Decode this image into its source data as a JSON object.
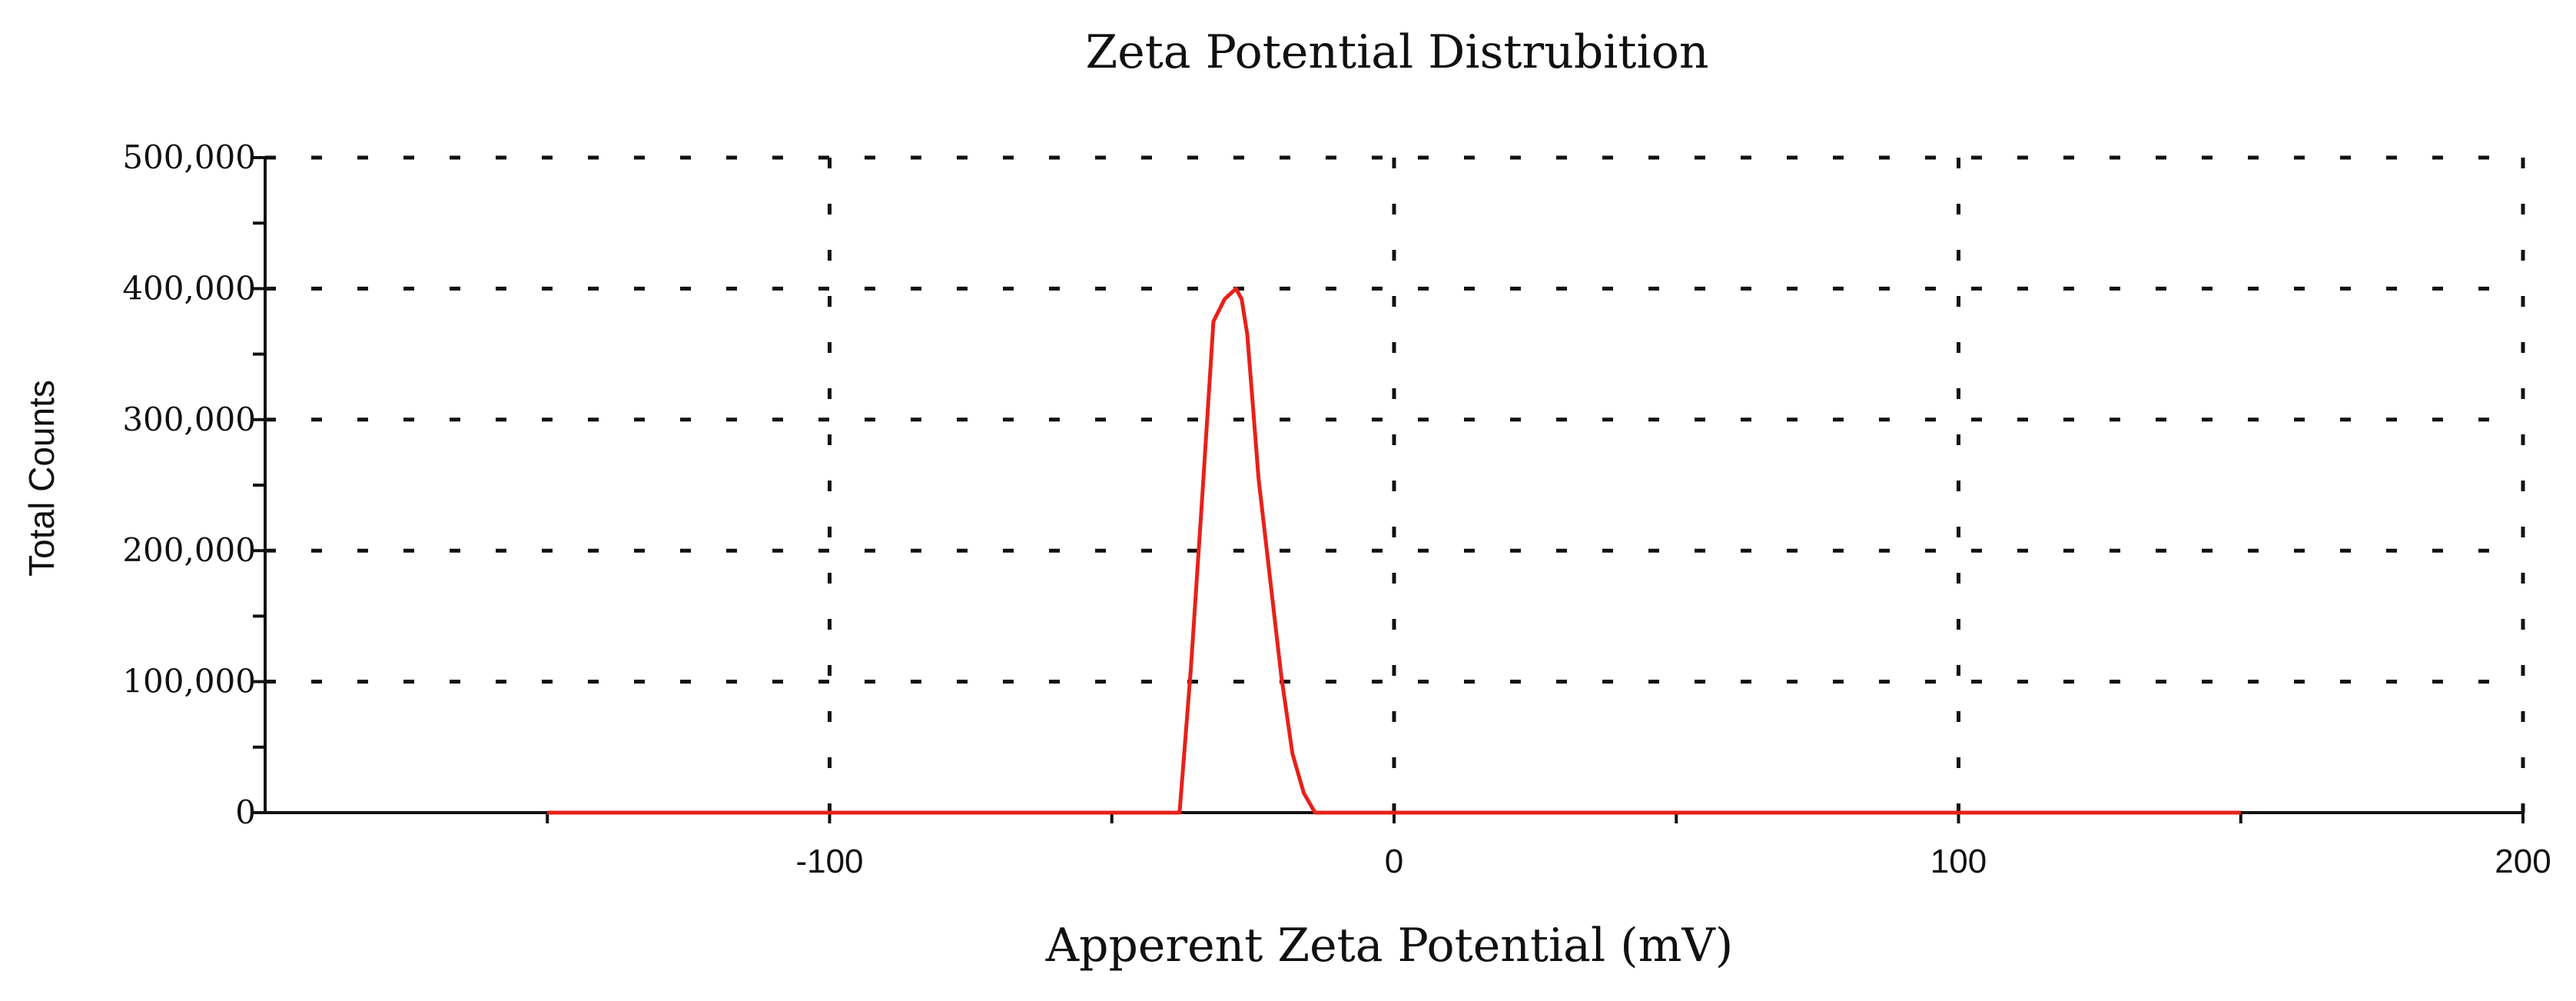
{
  "chart_data": {
    "type": "line",
    "title": "Zeta Potential Distrubition",
    "xlabel": "Apperent Zeta Potential (mV)",
    "ylabel": "Total Counts",
    "xlim": [
      -200,
      200
    ],
    "ylim": [
      0,
      500000
    ],
    "x_ticks": [
      -100,
      0,
      100,
      200
    ],
    "x_tick_labels": [
      "-100",
      "0",
      "100",
      "200"
    ],
    "y_ticks": [
      0,
      100000,
      200000,
      300000,
      400000,
      500000
    ],
    "y_tick_labels": [
      "0",
      "100,000",
      "200,000",
      "300,000",
      "400,000",
      "500,000"
    ],
    "grid": true,
    "line_color": "#e8201a",
    "series": [
      {
        "x": [
          -150,
          -40,
          -38,
          -36,
          -34,
          -32,
          -30,
          -28,
          -27,
          -26,
          -25,
          -24,
          -22,
          -20,
          -18,
          -16,
          -14,
          -12,
          150
        ],
        "y": [
          0,
          0,
          0,
          110000,
          240000,
          375000,
          392000,
          400000,
          392000,
          365000,
          310000,
          255000,
          180000,
          105000,
          45000,
          15000,
          0,
          0,
          0
        ]
      }
    ]
  }
}
